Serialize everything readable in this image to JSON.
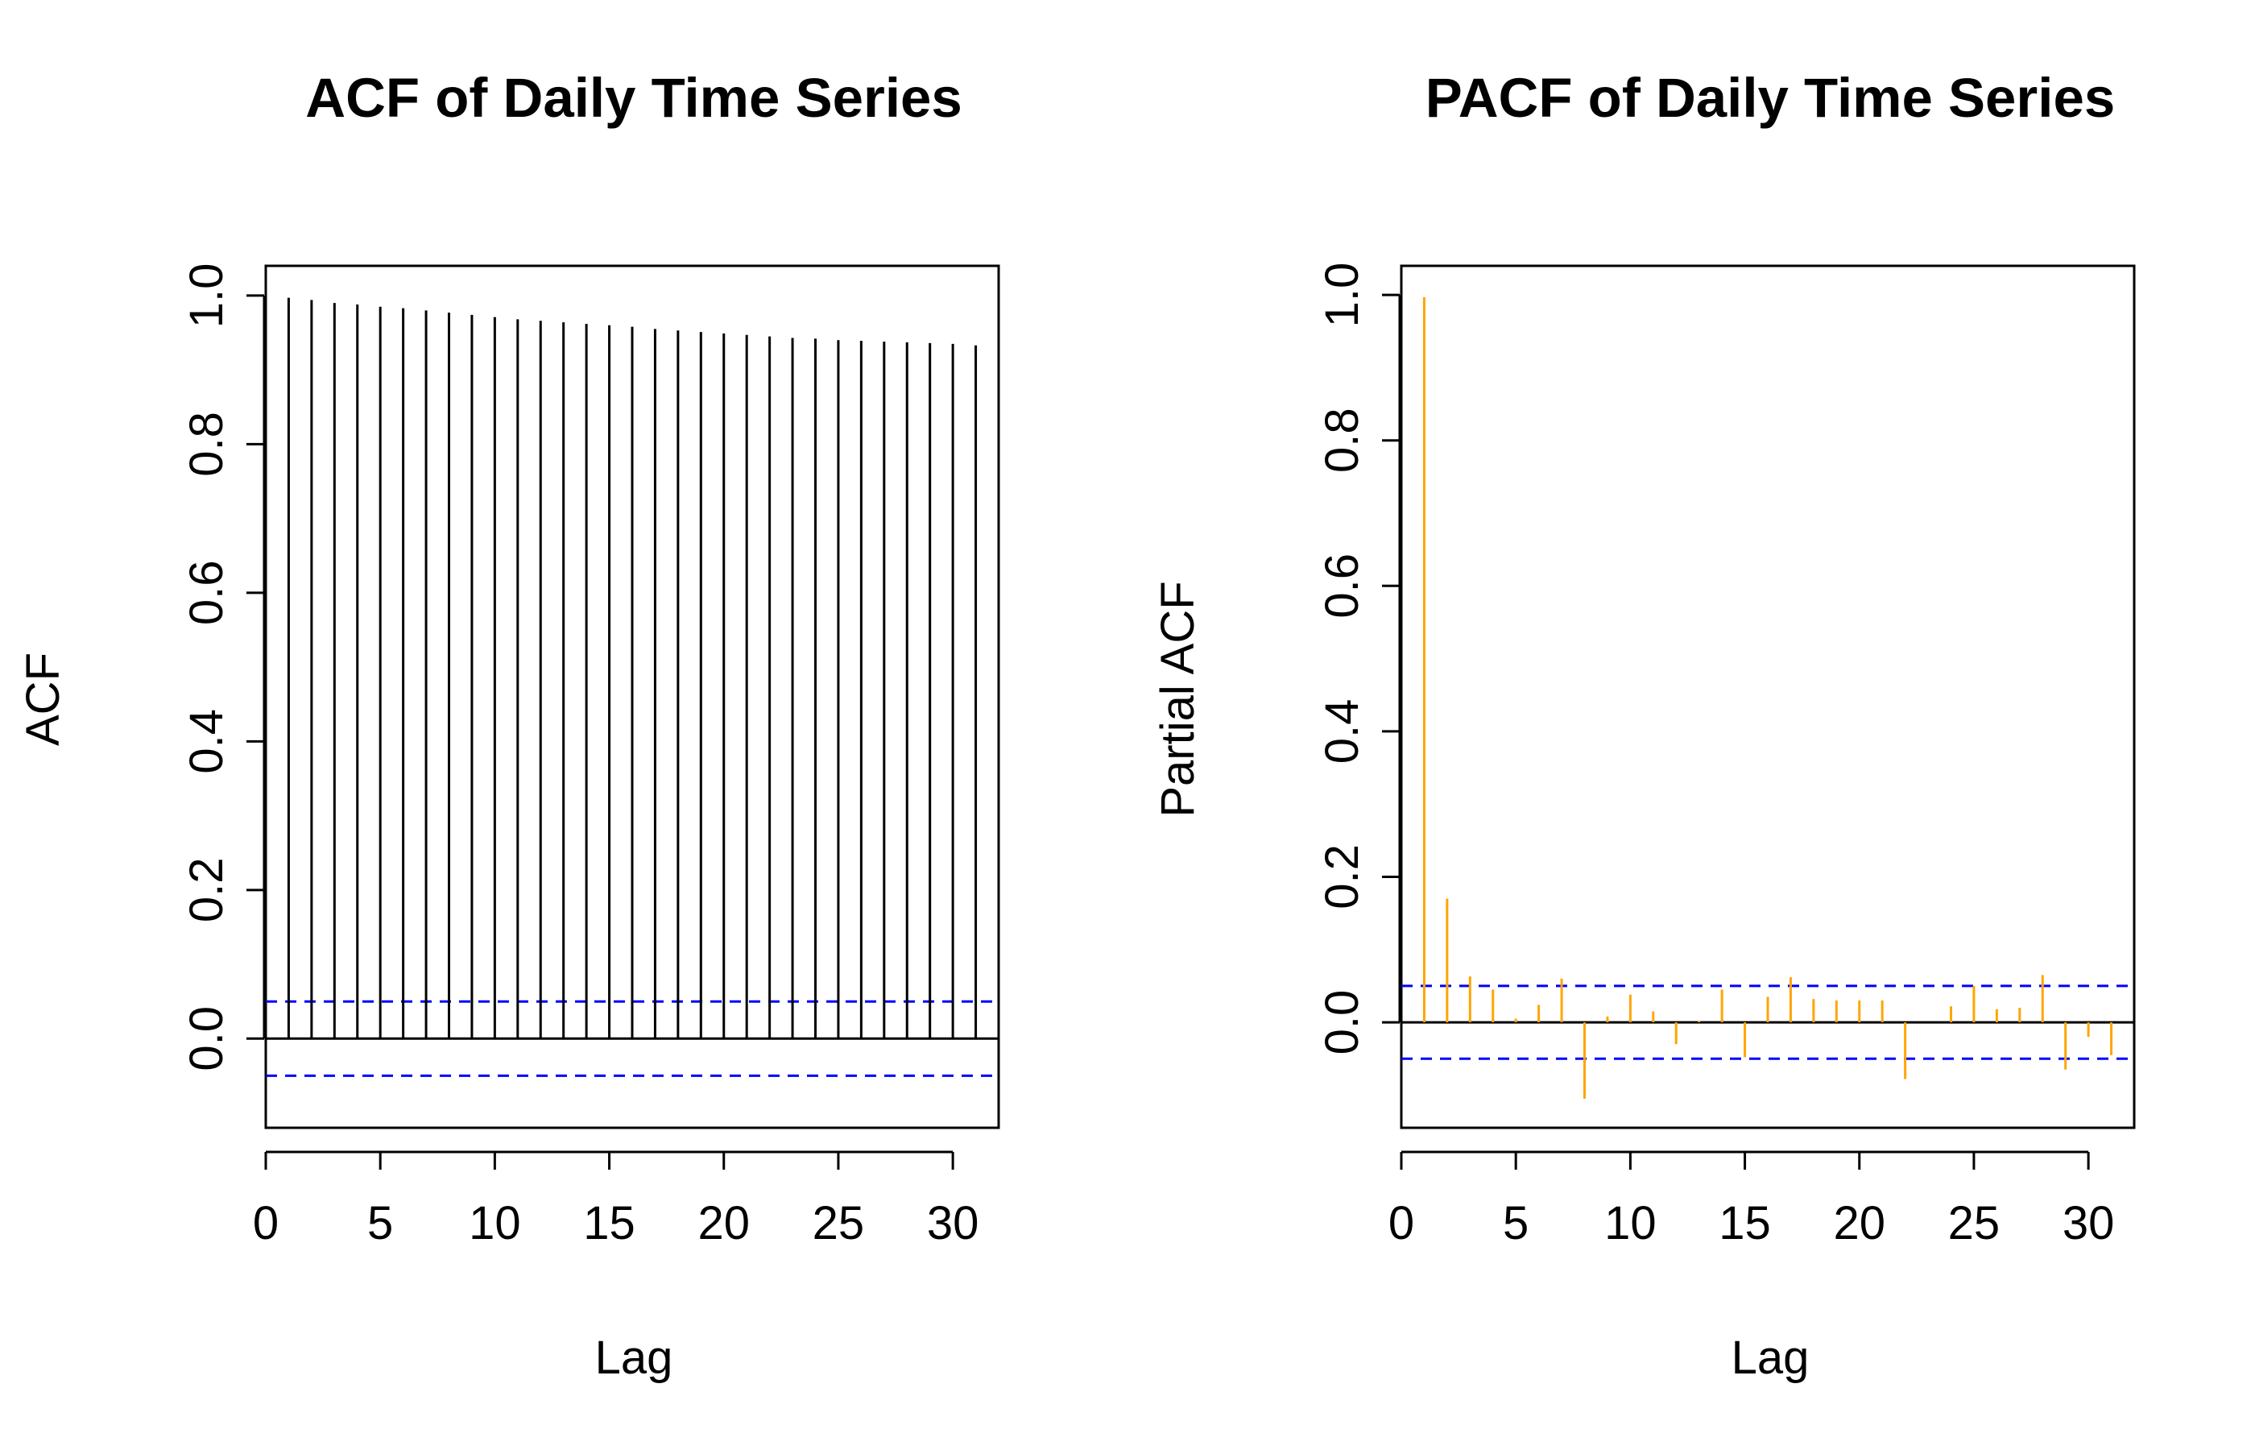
{
  "chart_data": [
    {
      "type": "bar",
      "title": "ACF of Daily Time Series",
      "xlabel": "Lag",
      "ylabel": "ACF",
      "xlim": [
        0,
        32
      ],
      "ylim": [
        -0.12,
        1.04
      ],
      "x_ticks": [
        "0",
        "5",
        "10",
        "15",
        "20",
        "25",
        "30"
      ],
      "y_ticks": [
        "0.0",
        "0.2",
        "0.4",
        "0.6",
        "0.8",
        "1.0"
      ],
      "bar_color": "#000000",
      "confidence_bound": 0.05,
      "confidence_color": "#0000FF",
      "lags": [
        1,
        2,
        3,
        4,
        5,
        6,
        7,
        8,
        9,
        10,
        11,
        12,
        13,
        14,
        15,
        16,
        17,
        18,
        19,
        20,
        21,
        22,
        23,
        24,
        25,
        26,
        27,
        28,
        29,
        30,
        31
      ],
      "values": [
        0.997,
        0.994,
        0.99,
        0.988,
        0.985,
        0.983,
        0.98,
        0.977,
        0.974,
        0.971,
        0.968,
        0.966,
        0.964,
        0.962,
        0.96,
        0.958,
        0.955,
        0.953,
        0.951,
        0.949,
        0.947,
        0.945,
        0.943,
        0.942,
        0.94,
        0.939,
        0.938,
        0.937,
        0.936,
        0.935,
        0.933
      ]
    },
    {
      "type": "bar",
      "title": "PACF of Daily Time Series",
      "xlabel": "Lag",
      "ylabel": "Partial ACF",
      "xlim": [
        0,
        32
      ],
      "ylim": [
        -0.145,
        1.04
      ],
      "x_ticks": [
        "0",
        "5",
        "10",
        "15",
        "20",
        "25",
        "30"
      ],
      "y_ticks": [
        "0.0",
        "0.2",
        "0.4",
        "0.6",
        "0.8",
        "1.0"
      ],
      "bar_color": "#FFA500",
      "confidence_bound": 0.05,
      "confidence_color": "#0000FF",
      "lags": [
        1,
        2,
        3,
        4,
        5,
        6,
        7,
        8,
        9,
        10,
        11,
        12,
        13,
        14,
        15,
        16,
        17,
        18,
        19,
        20,
        21,
        22,
        23,
        24,
        25,
        26,
        27,
        28,
        29,
        30,
        31
      ],
      "values": [
        0.997,
        0.17,
        0.063,
        0.045,
        0.005,
        0.024,
        0.06,
        -0.105,
        0.008,
        0.038,
        0.015,
        -0.03,
        0.002,
        0.045,
        -0.048,
        0.035,
        0.062,
        0.032,
        0.03,
        0.03,
        0.03,
        -0.078,
        0.0,
        0.022,
        0.05,
        0.018,
        0.02,
        0.065,
        -0.065,
        -0.02,
        -0.045
      ]
    }
  ]
}
